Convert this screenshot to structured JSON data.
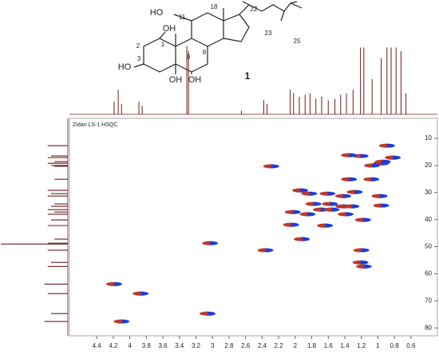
{
  "chart_data": {
    "type": "hsqc",
    "title": "Zidan LS-1 HSQC",
    "x": [
      0.89,
      1.21,
      0.82,
      0.94,
      1.35,
      0.96,
      1.07,
      2.29,
      1.35,
      1.08,
      1.94,
      1.83,
      1.61,
      1.28,
      0.98,
      1.42,
      1.78,
      1.58,
      1.42,
      0.96,
      2.03,
      1.69,
      1.56,
      1.32,
      1.85,
      1.39,
      1.64,
      1.18,
      2.05,
      1.92,
      3.03,
      2.36,
      1.2,
      1.21,
      1.17,
      4.19,
      3.87,
      3.06,
      4.1
    ],
    "values": [
      12.7,
      16.5,
      17.1,
      18.6,
      16.2,
      19.2,
      20.0,
      20.3,
      25.1,
      25.1,
      29.2,
      30.4,
      30.4,
      29.8,
      31.3,
      31.3,
      34.2,
      34.2,
      35.1,
      34.8,
      37.2,
      36.3,
      36.3,
      35.1,
      38.0,
      38.0,
      42.2,
      40.1,
      41.9,
      47.2,
      48.7,
      51.3,
      51.3,
      55.8,
      57.3,
      63.8,
      67.3,
      74.7,
      77.6
    ],
    "peak_colors": [
      "#c0392b",
      "#1a3fd6"
    ],
    "xlim": [
      4.73,
      0.28
    ],
    "ylim": [
      2.6,
      82.9
    ],
    "xticks": [
      4.4,
      4.2,
      4.0,
      3.8,
      3.6,
      3.4,
      3.2,
      3.0,
      2.8,
      2.6,
      2.4,
      2.2,
      2.0,
      1.8,
      1.6,
      1.4,
      1.2,
      1.0,
      0.8,
      0.6
    ],
    "yticks": [
      10,
      20,
      30,
      40,
      50,
      60,
      70,
      80
    ],
    "grid": false,
    "projection_color": "#6b1d1d",
    "projection_1h": {
      "x": [
        4.19,
        4.14,
        4.1,
        3.89,
        3.85,
        3.31,
        3.29,
        2.65,
        2.38,
        2.34,
        2.06,
        2.02,
        1.95,
        1.88,
        1.82,
        1.75,
        1.68,
        1.6,
        1.52,
        1.45,
        1.38,
        1.3,
        1.21,
        1.17,
        1.07,
        0.96,
        0.89,
        0.84,
        0.78,
        0.72,
        0.66
      ],
      "heights": [
        0.18,
        0.35,
        0.15,
        0.18,
        0.12,
        0.97,
        0.9,
        0.05,
        0.2,
        0.15,
        0.35,
        0.3,
        0.25,
        0.28,
        0.3,
        0.22,
        0.25,
        0.2,
        0.22,
        0.28,
        0.3,
        0.35,
        0.95,
        0.95,
        0.5,
        0.8,
        0.95,
        0.95,
        0.95,
        0.9,
        0.3
      ]
    },
    "projection_13c": {
      "y": [
        12.7,
        16.5,
        17.1,
        18.6,
        19.2,
        20.0,
        20.3,
        25.1,
        29.2,
        30.4,
        31.3,
        34.2,
        35.1,
        36.3,
        37.2,
        38.0,
        40.1,
        42.2,
        47.2,
        48.7,
        49.0,
        51.3,
        55.8,
        57.3,
        63.8,
        67.3,
        74.7,
        77.6
      ],
      "heights": [
        0.3,
        0.25,
        0.3,
        0.2,
        0.3,
        0.25,
        0.2,
        0.2,
        0.3,
        0.25,
        0.3,
        0.2,
        0.25,
        0.3,
        0.2,
        0.3,
        0.25,
        0.3,
        0.2,
        0.3,
        1.0,
        0.3,
        0.25,
        0.3,
        0.35,
        0.3,
        0.25,
        0.35
      ]
    }
  },
  "structure": {
    "labels": [
      "HO",
      "11",
      "18",
      "22",
      "23",
      "25",
      "OH",
      "1",
      "2",
      "3",
      "HO",
      "9",
      "8",
      "OH",
      "OH"
    ],
    "compound_number": "1"
  }
}
